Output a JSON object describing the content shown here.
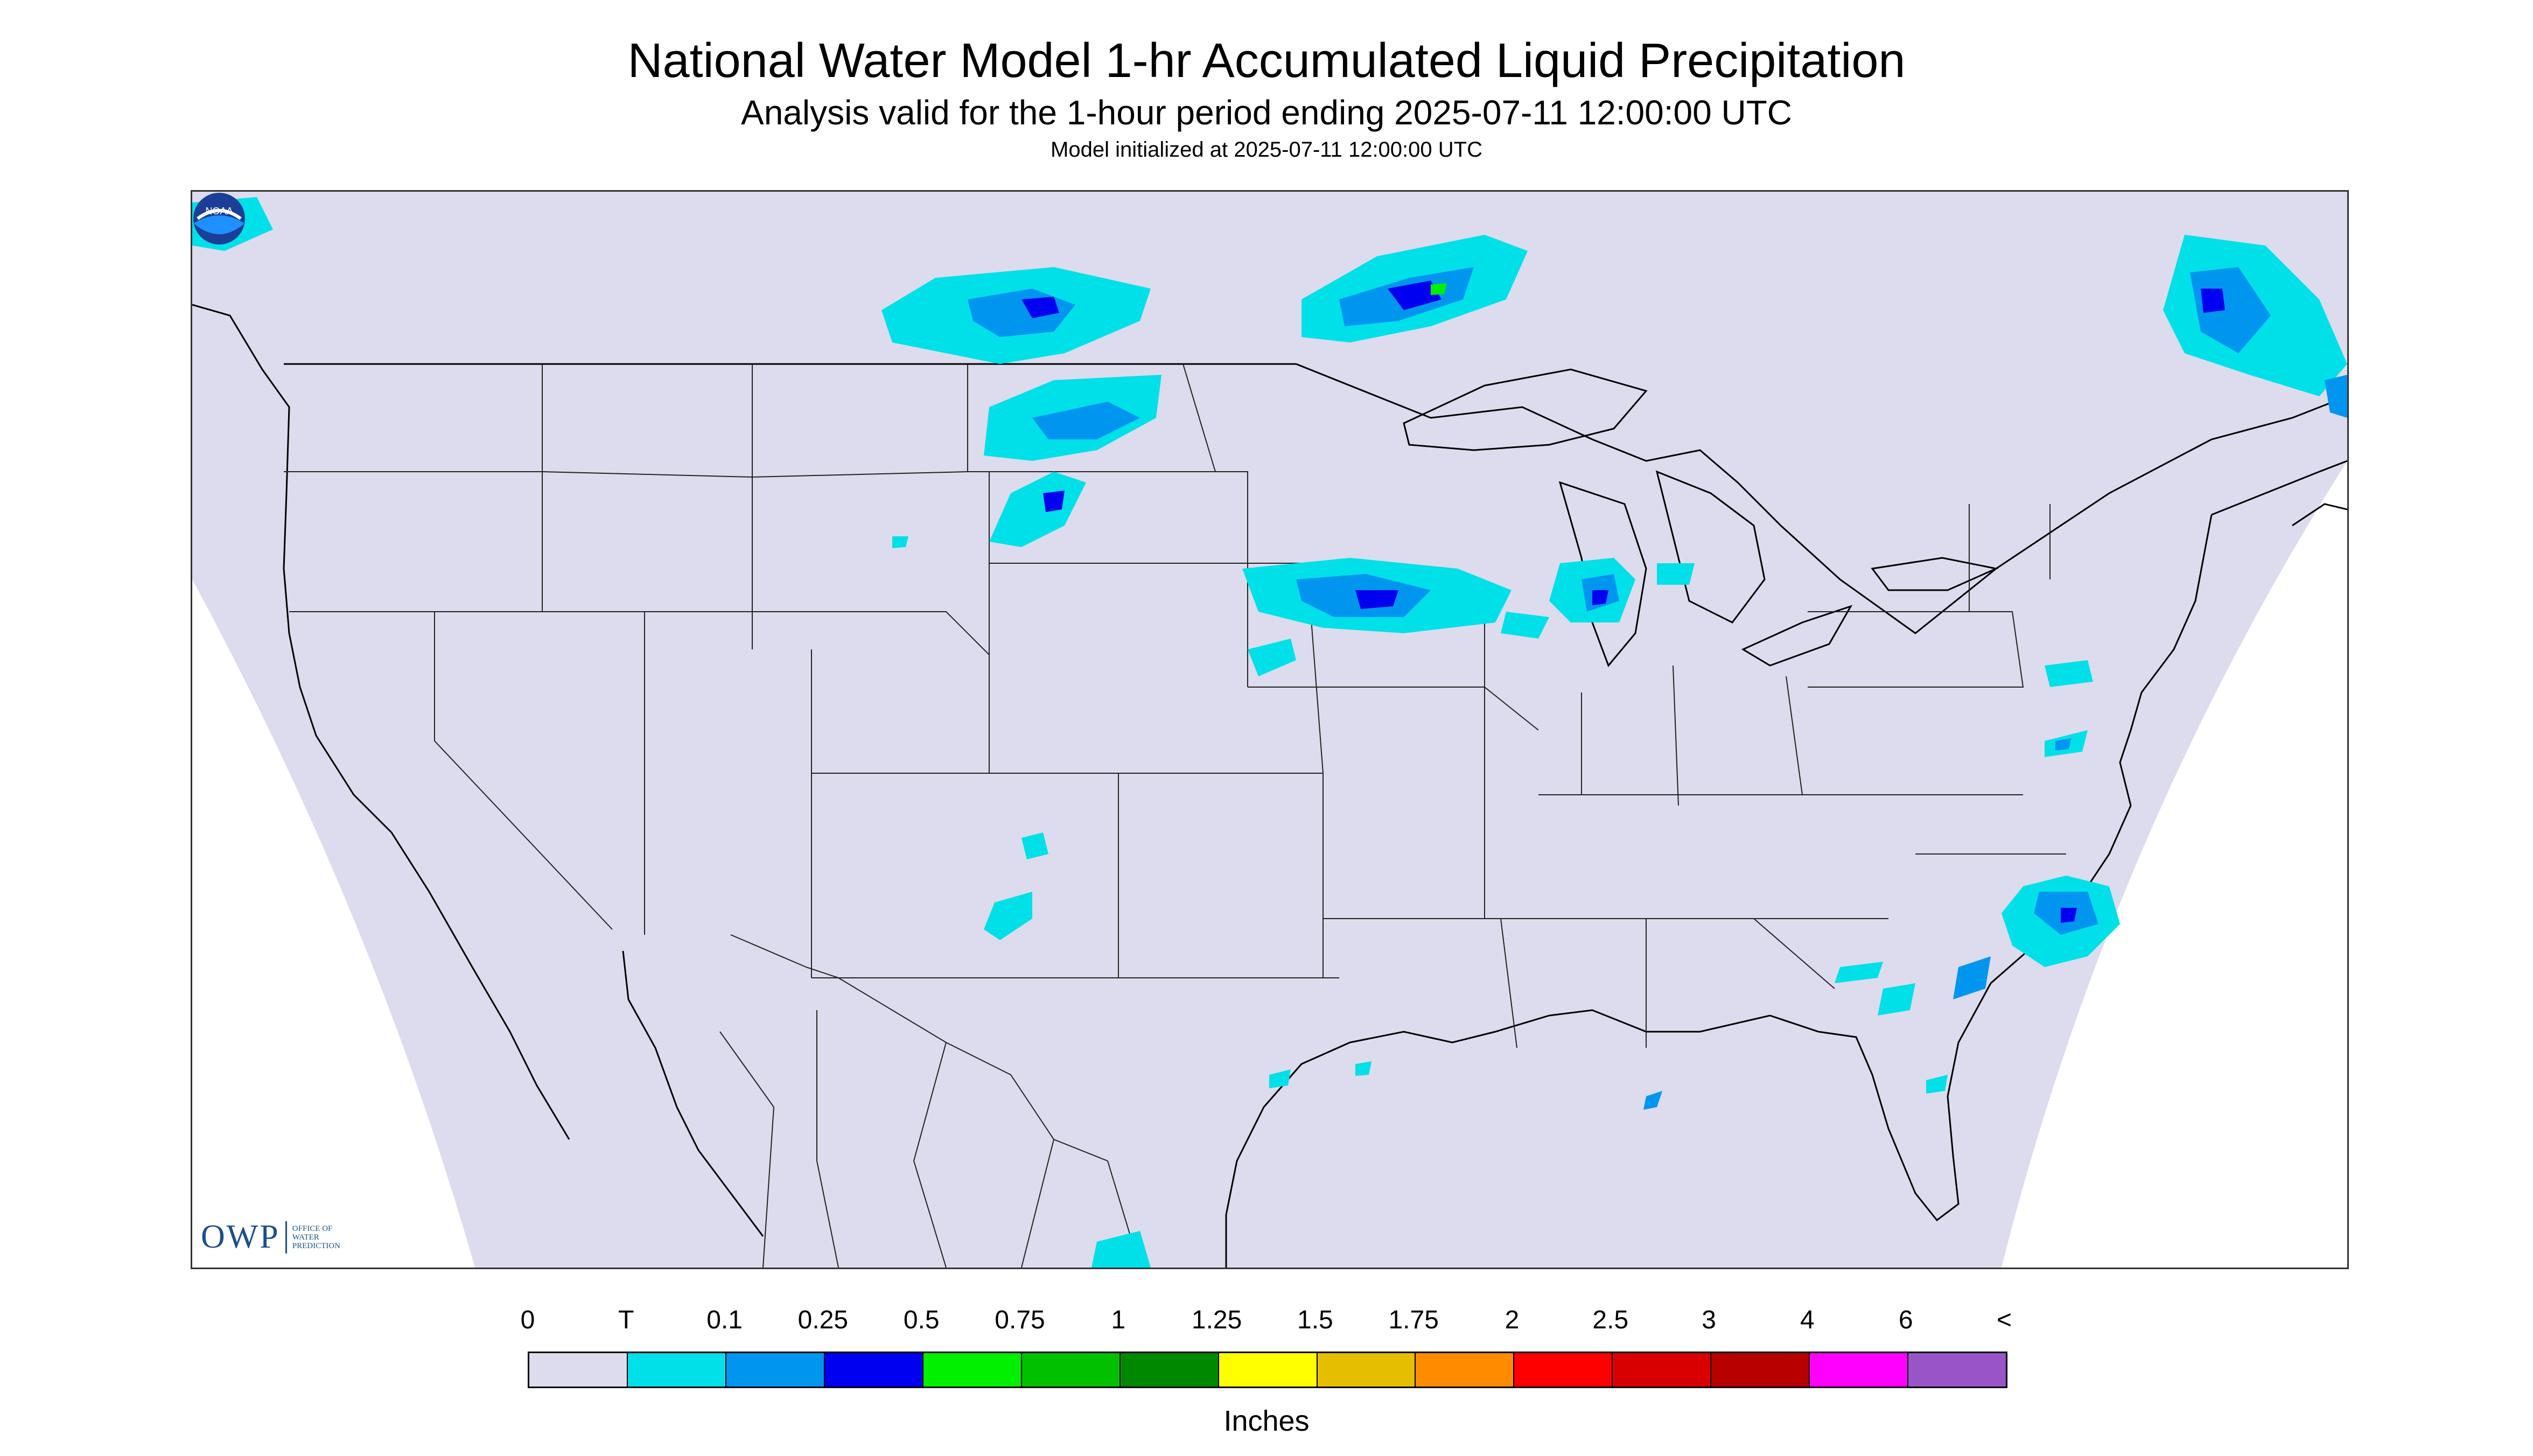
{
  "header": {
    "title": "National Water Model 1-hr Accumulated Liquid Precipitation",
    "subtitle": "Analysis valid for the 1-hour period ending 2025-07-11 12:00:00 UTC",
    "init": "Model initialized at 2025-07-11 12:00:00 UTC"
  },
  "logos": {
    "owp_text": "OWP",
    "owp_sub": "OFFICE OF WATER PREDICTION",
    "noaa_text": "NOAA"
  },
  "legend": {
    "tick_labels": [
      "0",
      "T",
      "0.1",
      "0.25",
      "0.5",
      "0.75",
      "1",
      "1.25",
      "1.5",
      "1.75",
      "2",
      "2.5",
      "3",
      "4",
      "6",
      "<"
    ],
    "colors": [
      "#dcdcee",
      "#00e0e8",
      "#0096f0",
      "#0000f0",
      "#00f000",
      "#00c000",
      "#008800",
      "#ffff00",
      "#e6be00",
      "#ff8c00",
      "#ff0000",
      "#d80000",
      "#b80000",
      "#ff00ff",
      "#9955c8"
    ],
    "units": "Inches"
  },
  "map": {
    "background_color": "#dcdcee",
    "boundary_color": "#000000",
    "precip_colors": {
      "trace": "#00e0e8",
      "light": "#0096f0",
      "moderate": "#0000f0",
      "heavy": "#00f000"
    }
  }
}
